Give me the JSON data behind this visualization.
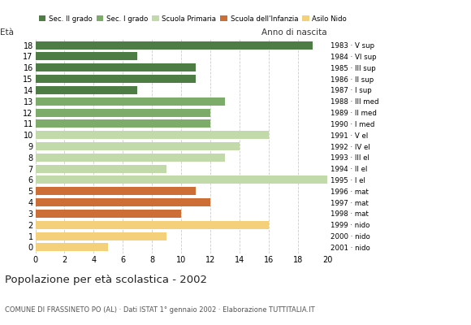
{
  "ages": [
    18,
    17,
    16,
    15,
    14,
    13,
    12,
    11,
    10,
    9,
    8,
    7,
    6,
    5,
    4,
    3,
    2,
    1,
    0
  ],
  "values": [
    19,
    7,
    11,
    11,
    7,
    13,
    12,
    12,
    16,
    14,
    13,
    9,
    20,
    11,
    12,
    10,
    16,
    9,
    5
  ],
  "right_labels": [
    "1983 · V sup",
    "1984 · VI sup",
    "1985 · III sup",
    "1986 · II sup",
    "1987 · I sup",
    "1988 · III med",
    "1989 · II med",
    "1990 · I med",
    "1991 · V el",
    "1992 · IV el",
    "1993 · III el",
    "1994 · II el",
    "1995 · I el",
    "1996 · mat",
    "1997 · mat",
    "1998 · mat",
    "1999 · nido",
    "2000 · nido",
    "2001 · nido"
  ],
  "bar_colors": [
    "#4e7c45",
    "#4e7c45",
    "#4e7c45",
    "#4e7c45",
    "#4e7c45",
    "#7dac6a",
    "#7dac6a",
    "#7dac6a",
    "#c2d9aa",
    "#c2d9aa",
    "#c2d9aa",
    "#c2d9aa",
    "#c2d9aa",
    "#cc6e35",
    "#cc6e35",
    "#cc6e35",
    "#f5d07a",
    "#f5d07a",
    "#f5d07a"
  ],
  "legend_labels": [
    "Sec. II grado",
    "Sec. I grado",
    "Scuola Primaria",
    "Scuola dell'Infanzia",
    "Asilo Nido"
  ],
  "legend_colors": [
    "#4e7c45",
    "#7dac6a",
    "#c2d9aa",
    "#cc6e35",
    "#f5d07a"
  ],
  "title": "Popolazione per età scolastica - 2002",
  "subtitle": "COMUNE DI FRASSINETO PO (AL) · Dati ISTAT 1° gennaio 2002 · Elaborazione TUTTITALIA.IT",
  "eta_label": "Età",
  "anno_label": "Anno di nascita",
  "xlim": [
    0,
    20
  ],
  "xticks": [
    0,
    2,
    4,
    6,
    8,
    10,
    12,
    14,
    16,
    18,
    20
  ],
  "bg_color": "#ffffff",
  "grid_color": "#cccccc",
  "bar_height": 0.72
}
